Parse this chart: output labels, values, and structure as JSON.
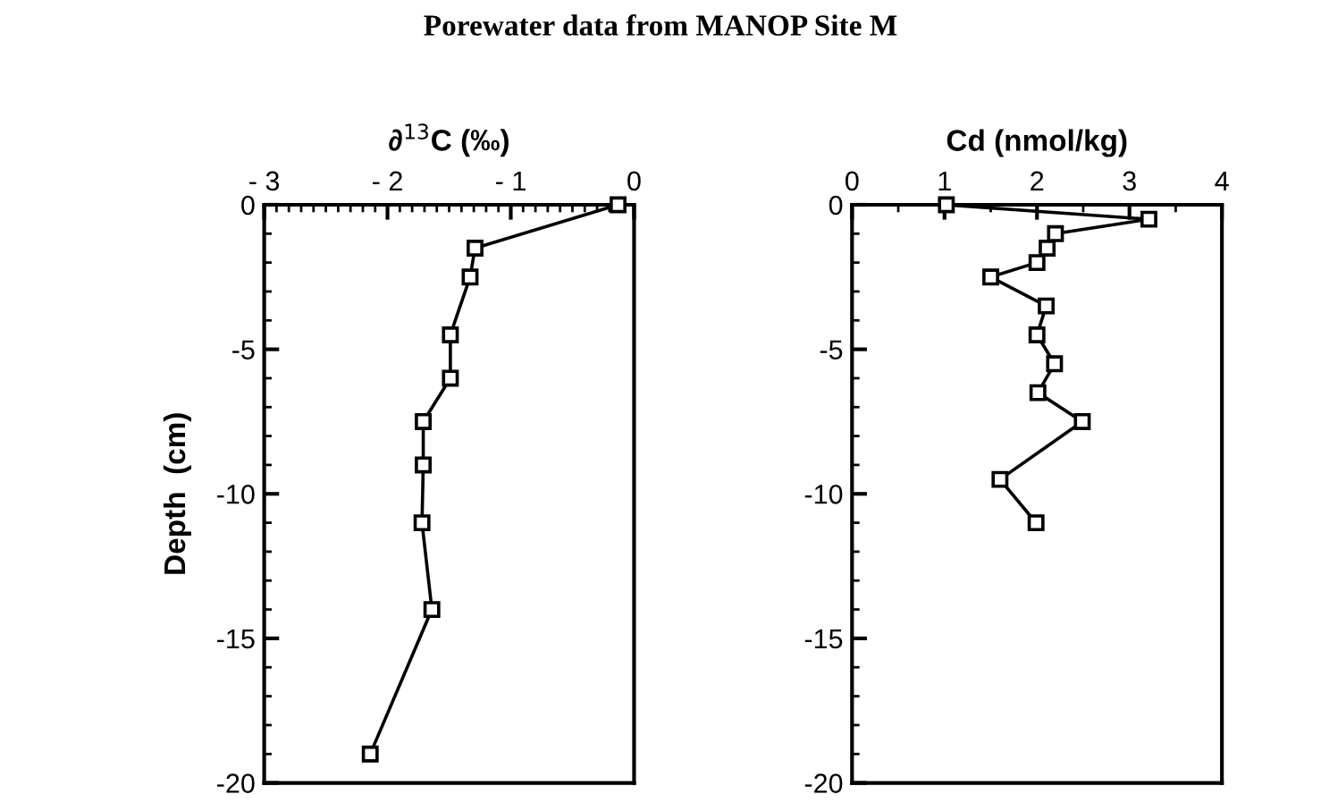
{
  "chart_data": [
    {
      "type": "line",
      "title": "Porewater data from MANOP Site M",
      "xlabel": "∂$^{13}$C (‰)",
      "ylabel": "Depth  (cm)",
      "marker": "square",
      "line_style": "solid",
      "grid": false,
      "legend": false,
      "series": [
        {
          "color": "#000000",
          "x": [
            -0.13,
            -1.29,
            -1.33,
            -1.49,
            -1.49,
            -1.71,
            -1.71,
            -1.72,
            -1.64,
            -2.14
          ],
          "values": [
            0,
            -1.5,
            -2.5,
            -4.5,
            -6,
            -7.5,
            -9,
            -11,
            -14,
            -19
          ]
        }
      ],
      "xlim": [
        -3,
        0
      ],
      "xticks": [
        {
          "value": -3,
          "label": "- 3"
        },
        {
          "value": -2,
          "label": "- 2"
        },
        {
          "value": -1,
          "label": "- 1"
        },
        0
      ],
      "ylim": [
        -20,
        0
      ],
      "yticks": [
        -20,
        -15,
        -10,
        -5,
        0
      ]
    },
    {
      "type": "line",
      "xlabel": "Cd (nmol/kg)",
      "marker": "square",
      "line_style": "solid",
      "grid": false,
      "legend": false,
      "series": [
        {
          "color": "#000000",
          "x": [
            1.02,
            3.21,
            2.2,
            2.11,
            2.0,
            1.5,
            2.1,
            2.0,
            2.19,
            2.01,
            2.49,
            1.6,
            1.99
          ],
          "values": [
            0,
            -0.5,
            -1,
            -1.5,
            -2,
            -2.5,
            -3.5,
            -4.5,
            -5.5,
            -6.5,
            -7.5,
            -9.5,
            -11
          ]
        }
      ],
      "xlim": [
        0,
        4
      ],
      "xticks": [
        0,
        1,
        2,
        3,
        4
      ],
      "ylim": [
        -20,
        0
      ],
      "yticks": [
        -20,
        -15,
        -10,
        -5,
        0
      ]
    }
  ]
}
